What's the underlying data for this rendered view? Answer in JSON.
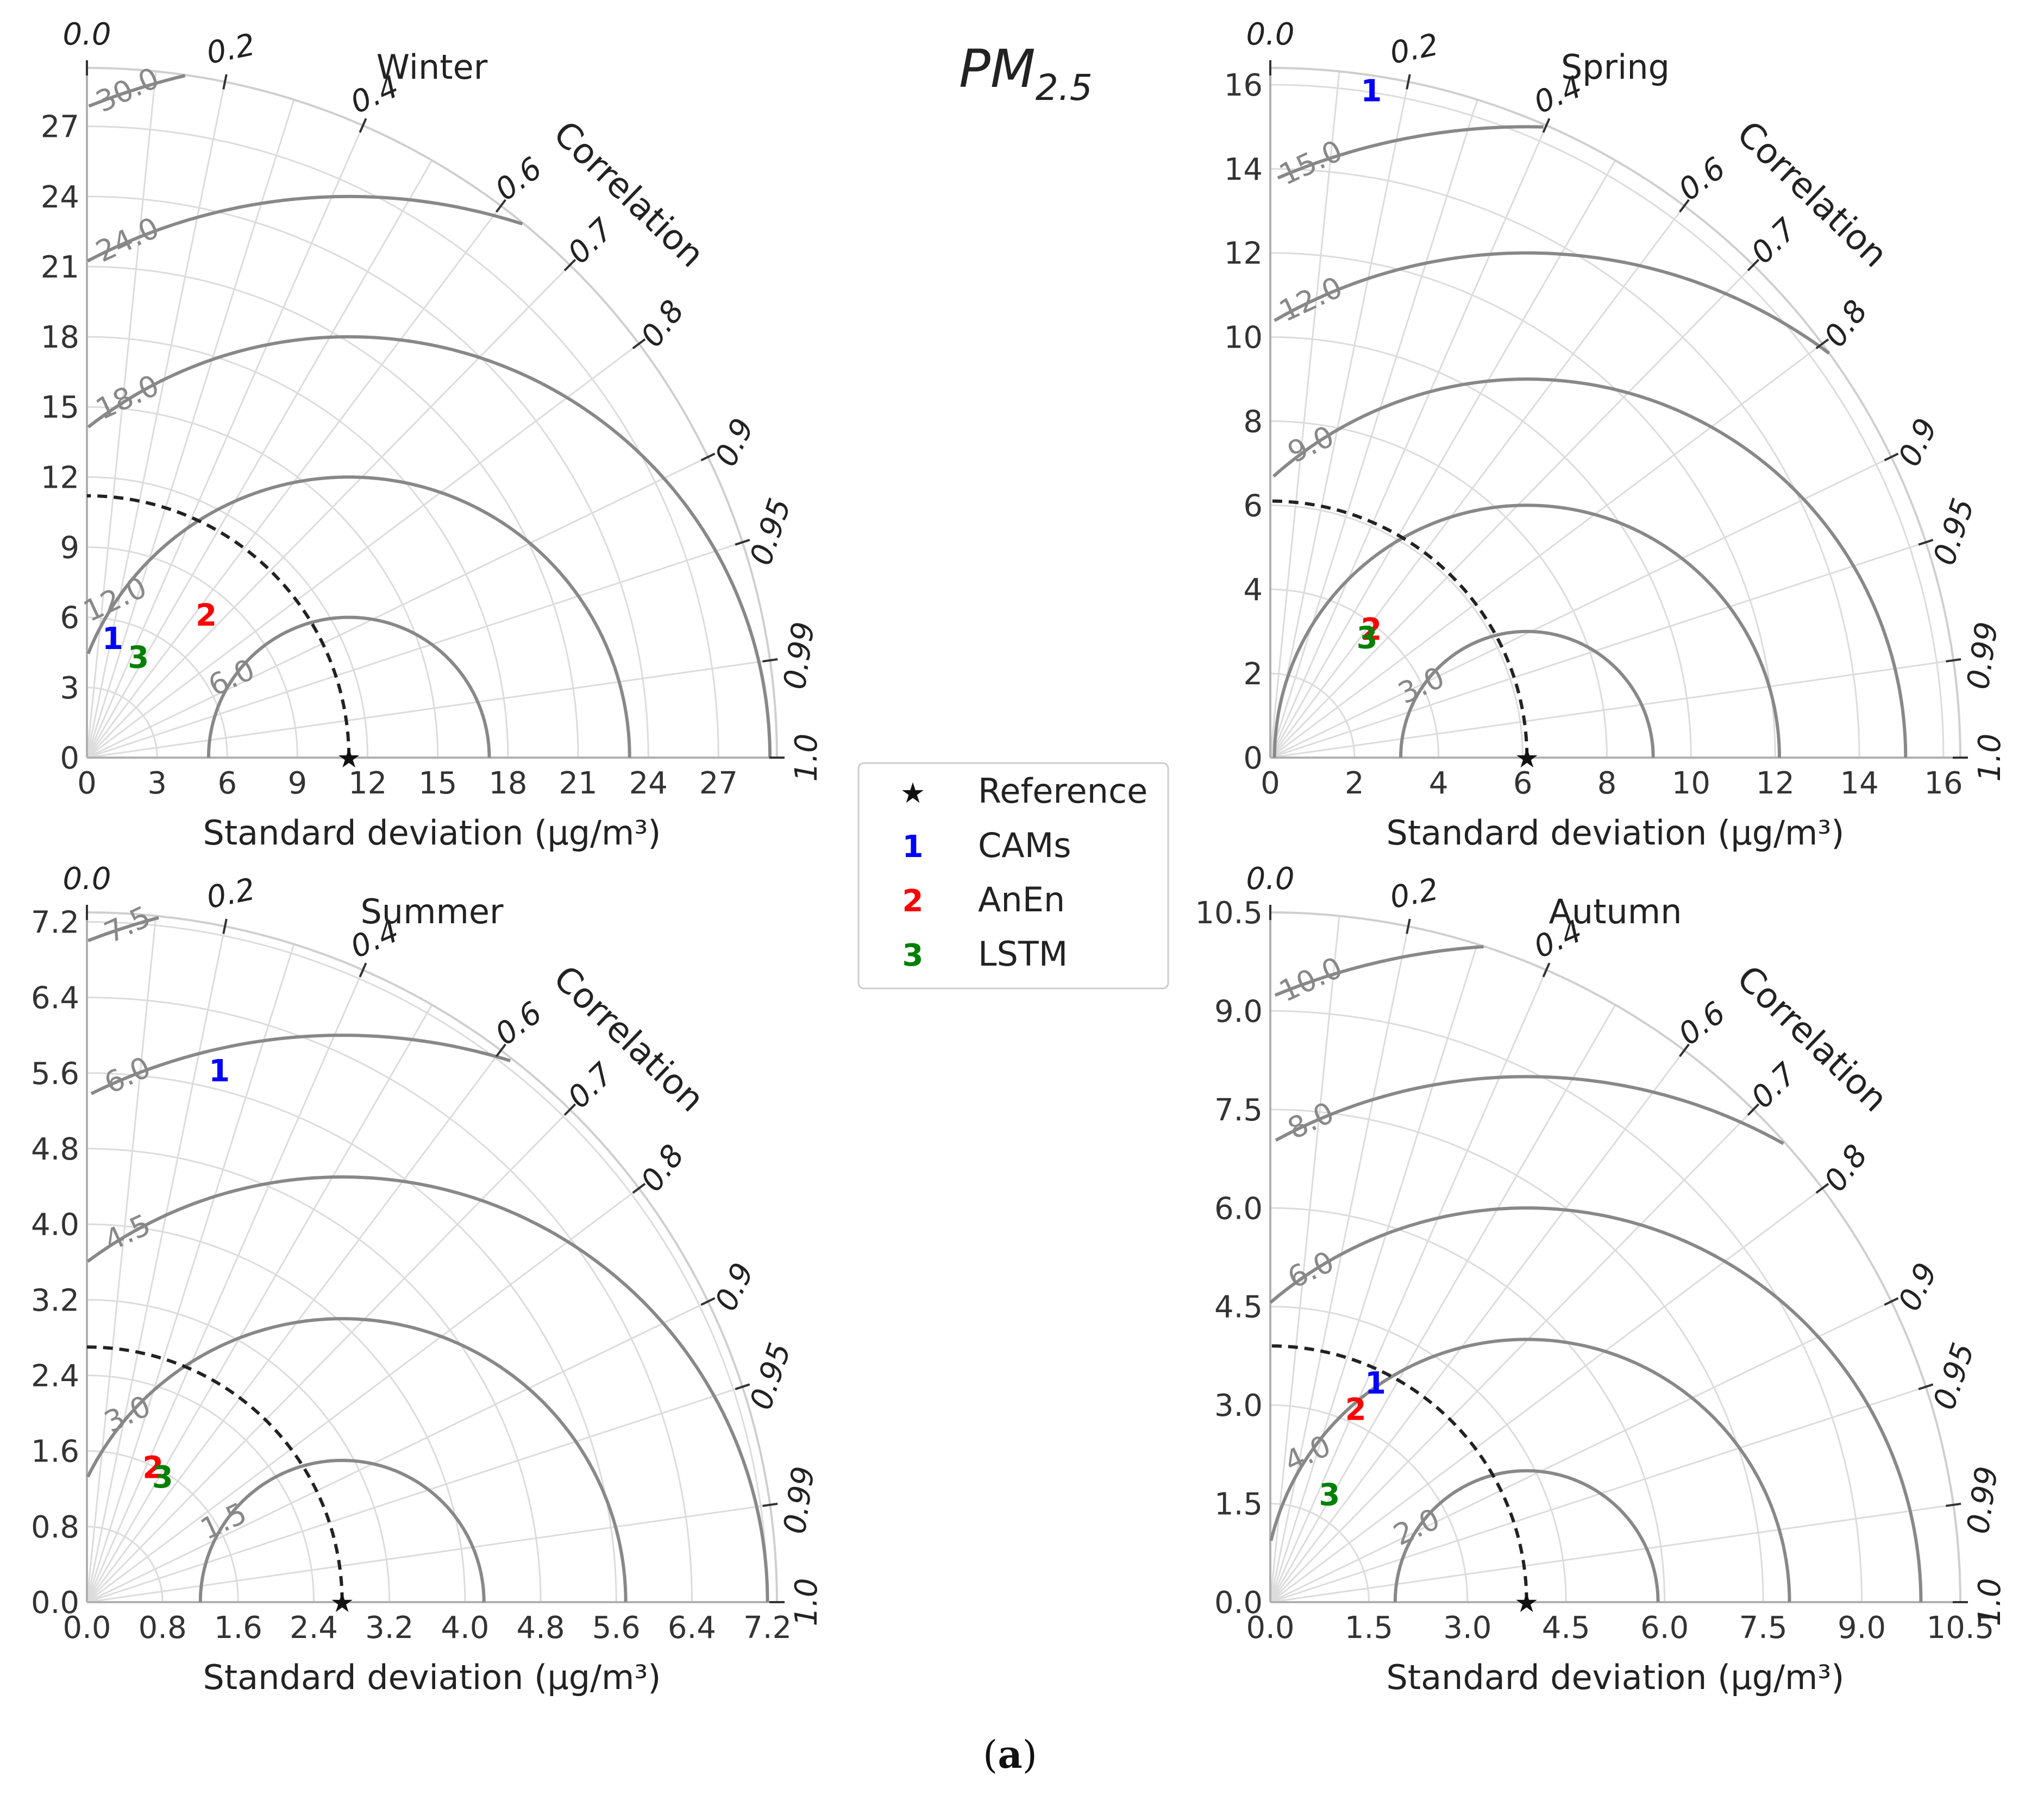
{
  "figure": {
    "title": "PM",
    "title_subscript": "2.5",
    "caption_open": "(",
    "caption_letter": "a",
    "caption_close": ")"
  },
  "legend": {
    "items": [
      {
        "symbol": "★",
        "label": "Reference",
        "color": "#000000"
      },
      {
        "symbol": "1",
        "label": "CAMs",
        "color": "#0000ff"
      },
      {
        "symbol": "2",
        "label": "AnEn",
        "color": "#ff0000"
      },
      {
        "symbol": "3",
        "label": "LSTM",
        "color": "#008000"
      }
    ]
  },
  "chart_data": [
    {
      "type": "taylor",
      "title": "Winter",
      "xlabel": "Standard deviation (μg/m³)",
      "correlation_label": "Correlation",
      "std_max": 29.5,
      "std_ticks": [
        0,
        3,
        6,
        9,
        12,
        15,
        18,
        21,
        24,
        27
      ],
      "std_tick_labels": [
        "0",
        "3",
        "6",
        "9",
        "12",
        "15",
        "18",
        "21",
        "24",
        "27"
      ],
      "correlation_ticks": [
        0.0,
        0.2,
        0.4,
        0.6,
        0.7,
        0.8,
        0.9,
        0.95,
        0.99,
        1.0
      ],
      "correlation_tick_labels": [
        "0.0",
        "0.2",
        "0.4",
        "0.6",
        "0.7",
        "0.8",
        "0.9",
        "0.95",
        "0.99",
        "1.0"
      ],
      "reference_std": 11.2,
      "rmsd_contours": [
        6.0,
        12.0,
        18.0,
        24.0,
        30.0
      ],
      "rmsd_labels": [
        "6.0",
        "12.0",
        "18.0",
        "24.0",
        "30.0"
      ],
      "points": [
        {
          "marker": "1",
          "model": "CAMs",
          "x": 1.1,
          "y": 5.0
        },
        {
          "marker": "2",
          "model": "AnEn",
          "x": 5.1,
          "y": 6.0
        },
        {
          "marker": "3",
          "model": "LSTM",
          "x": 2.2,
          "y": 4.2
        }
      ]
    },
    {
      "type": "taylor",
      "title": "Spring",
      "xlabel": "Standard deviation (μg/m³)",
      "correlation_label": "Correlation",
      "std_max": 16.4,
      "std_ticks": [
        0,
        2,
        4,
        6,
        8,
        10,
        12,
        14,
        16
      ],
      "std_tick_labels": [
        "0",
        "2",
        "4",
        "6",
        "8",
        "10",
        "12",
        "14",
        "16"
      ],
      "correlation_ticks": [
        0.0,
        0.2,
        0.4,
        0.6,
        0.7,
        0.8,
        0.9,
        0.95,
        0.99,
        1.0
      ],
      "correlation_tick_labels": [
        "0.0",
        "0.2",
        "0.4",
        "0.6",
        "0.7",
        "0.8",
        "0.9",
        "0.95",
        "0.99",
        "1.0"
      ],
      "reference_std": 6.1,
      "rmsd_contours": [
        3.0,
        6.0,
        9.0,
        12.0,
        15.0
      ],
      "rmsd_labels": [
        "3.0",
        "",
        "9.0",
        "12.0",
        "15.0"
      ],
      "points": [
        {
          "marker": "1",
          "model": "CAMs",
          "x": 2.4,
          "y": 15.8
        },
        {
          "marker": "2",
          "model": "AnEn",
          "x": 2.4,
          "y": 3.0
        },
        {
          "marker": "3",
          "model": "LSTM",
          "x": 2.3,
          "y": 2.8
        }
      ]
    },
    {
      "type": "taylor",
      "title": "Summer",
      "xlabel": "Standard deviation (μg/m³)",
      "correlation_label": "Correlation",
      "std_max": 7.3,
      "std_ticks": [
        0.0,
        0.8,
        1.6,
        2.4,
        3.2,
        4.0,
        4.8,
        5.6,
        6.4,
        7.2
      ],
      "std_tick_labels": [
        "0.0",
        "0.8",
        "1.6",
        "2.4",
        "3.2",
        "4.0",
        "4.8",
        "5.6",
        "6.4",
        "7.2"
      ],
      "correlation_ticks": [
        0.0,
        0.2,
        0.4,
        0.6,
        0.7,
        0.8,
        0.9,
        0.95,
        0.99,
        1.0
      ],
      "correlation_tick_labels": [
        "0.0",
        "0.2",
        "0.4",
        "0.6",
        "0.7",
        "0.8",
        "0.9",
        "0.95",
        "0.99",
        "1.0"
      ],
      "reference_std": 2.7,
      "rmsd_contours": [
        1.5,
        3.0,
        4.5,
        6.0,
        7.5
      ],
      "rmsd_labels": [
        "1.5",
        "3.0",
        "4.5",
        "6.0",
        "7.5"
      ],
      "points": [
        {
          "marker": "1",
          "model": "CAMs",
          "x": 1.4,
          "y": 5.6
        },
        {
          "marker": "2",
          "model": "AnEn",
          "x": 0.7,
          "y": 1.4
        },
        {
          "marker": "3",
          "model": "LSTM",
          "x": 0.8,
          "y": 1.3
        }
      ]
    },
    {
      "type": "taylor",
      "title": "Autumn",
      "xlabel": "Standard deviation (μg/m³)",
      "correlation_label": "Correlation",
      "std_max": 10.5,
      "std_ticks": [
        0.0,
        1.5,
        3.0,
        4.5,
        6.0,
        7.5,
        9.0,
        10.5
      ],
      "std_tick_labels": [
        "0.0",
        "1.5",
        "3.0",
        "4.5",
        "6.0",
        "7.5",
        "9.0",
        "10.5"
      ],
      "correlation_ticks": [
        0.0,
        0.2,
        0.4,
        0.6,
        0.7,
        0.8,
        0.9,
        0.95,
        0.99,
        1.0
      ],
      "correlation_tick_labels": [
        "0.0",
        "0.2",
        "0.4",
        "0.6",
        "0.7",
        "0.8",
        "0.9",
        "0.95",
        "0.99",
        "1.0"
      ],
      "reference_std": 3.9,
      "rmsd_contours": [
        2.0,
        4.0,
        6.0,
        8.0,
        10.0
      ],
      "rmsd_labels": [
        "2.0",
        "4.0",
        "6.0",
        "8.0",
        "10.0"
      ],
      "points": [
        {
          "marker": "1",
          "model": "CAMs",
          "x": 1.6,
          "y": 3.3
        },
        {
          "marker": "2",
          "model": "AnEn",
          "x": 1.3,
          "y": 2.9
        },
        {
          "marker": "3",
          "model": "LSTM",
          "x": 0.9,
          "y": 1.6
        }
      ]
    }
  ]
}
